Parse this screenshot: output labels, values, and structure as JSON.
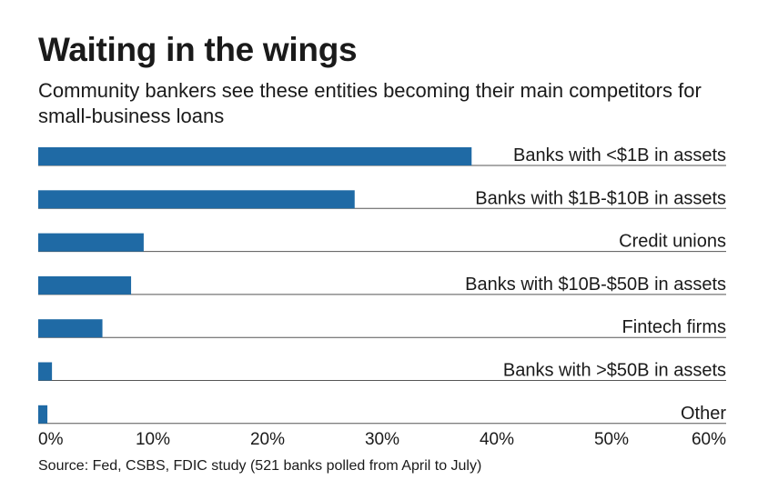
{
  "title": "Waiting in the wings",
  "subtitle": "Community bankers see these entities becoming their main competitors for small-business loans",
  "source": "Source: Fed, CSBS, FDIC study (521 banks polled from April to July)",
  "colors": {
    "bar": "#1f6aa5",
    "line": "#555555",
    "text": "#1a1a1a"
  },
  "chart_data": {
    "type": "bar",
    "orientation": "horizontal",
    "title": "Waiting in the wings",
    "xlabel": "",
    "ylabel": "",
    "xlim": [
      0,
      60
    ],
    "x_ticks": [
      0,
      10,
      20,
      30,
      40,
      50,
      60
    ],
    "tick_labels": [
      "0%",
      "10%",
      "20%",
      "30%",
      "40%",
      "50%",
      "60%"
    ],
    "categories": [
      "Banks with <$1B in assets",
      "Banks with $1B-$10B in assets",
      "Credit unions",
      "Banks with $10B-$50B in assets",
      "Fintech firms",
      "Banks with >$50B in assets",
      "Other"
    ],
    "values": [
      37.8,
      27.6,
      9.2,
      8.1,
      5.6,
      1.2,
      0.8
    ],
    "unit": "%",
    "grid": false
  }
}
